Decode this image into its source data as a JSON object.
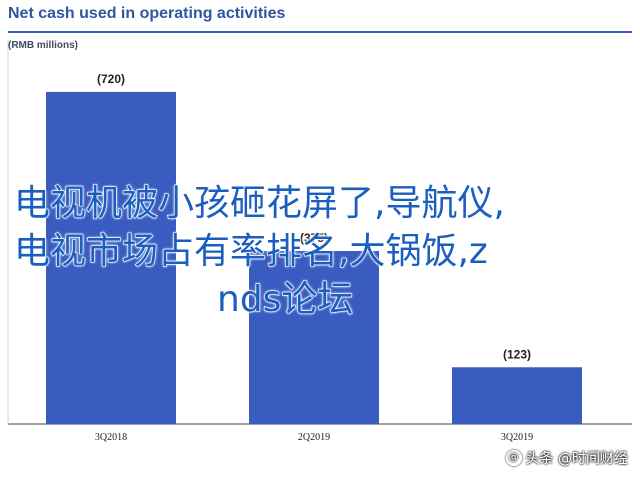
{
  "header": {
    "title": "Net cash used in operating activities",
    "unit": "(RMB millions)"
  },
  "chart_data": {
    "type": "bar",
    "title": "Net cash used in operating activities",
    "subtitle": "(RMB millions)",
    "categories": [
      "3Q2018",
      "2Q2019",
      "3Q2019"
    ],
    "values": [
      -720,
      -375,
      -123
    ],
    "data_labels": [
      "(720)",
      "(375)",
      "(123)"
    ],
    "xlabel": "",
    "ylabel": "",
    "ylim": [
      -800,
      0
    ],
    "grid": false,
    "bar_color": "#3a5bbf"
  },
  "overlay": {
    "line1": "电视机被小孩砸花屏了,导航仪,",
    "line2": "电视市场占有率排名,大锅饭,z",
    "line3": "nds论坛"
  },
  "watermark": {
    "text": "头条 @时间财经"
  },
  "colors": {
    "title": "#2f56a0",
    "rule": "#3060c4",
    "bar": "#3a5bbf",
    "overlay_text": "#1a5fc0"
  }
}
